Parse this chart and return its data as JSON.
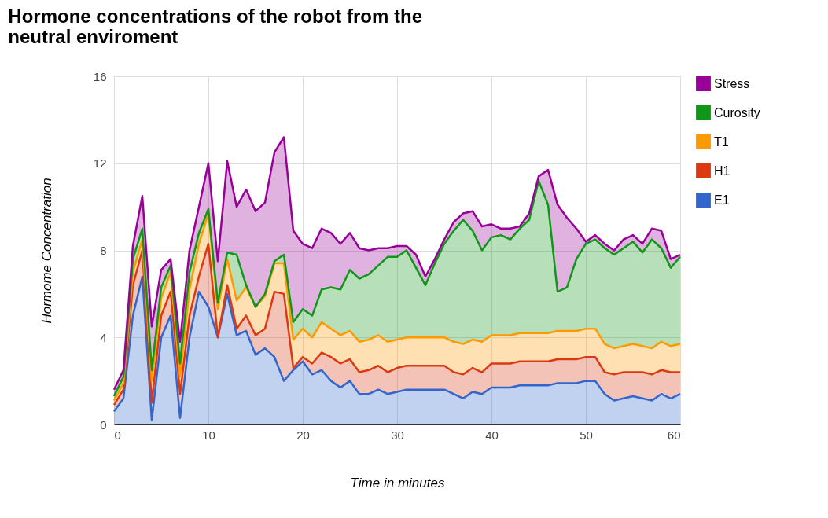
{
  "chart_data": {
    "type": "area",
    "stacked": true,
    "title": [
      "Hormone concentrations of the robot from the",
      "neutral enviroment"
    ],
    "xlabel": "Time in minutes",
    "ylabel": "Hormome Concentration",
    "x": [
      0,
      1,
      2,
      3,
      4,
      5,
      6,
      7,
      8,
      9,
      10,
      11,
      12,
      13,
      14,
      15,
      16,
      17,
      18,
      19,
      20,
      21,
      22,
      23,
      24,
      25,
      26,
      27,
      28,
      29,
      30,
      31,
      32,
      33,
      34,
      35,
      36,
      37,
      38,
      39,
      40,
      41,
      42,
      43,
      44,
      45,
      46,
      47,
      48,
      49,
      50,
      51,
      52,
      53,
      54,
      55,
      56,
      57,
      58,
      59,
      60
    ],
    "xlim": [
      0,
      60
    ],
    "xticks": [
      0,
      10,
      20,
      30,
      40,
      50,
      60
    ],
    "ylim": [
      0,
      16
    ],
    "yticks": [
      0,
      4,
      8,
      12,
      16
    ],
    "grid": true,
    "legend": "right",
    "series": [
      {
        "name": "E1",
        "color": "#3366cc",
        "values": [
          0.6,
          1.2,
          5.0,
          6.8,
          0.2,
          4.0,
          5.0,
          0.3,
          4.0,
          6.1,
          5.4,
          4.0,
          6.0,
          4.1,
          4.3,
          3.2,
          3.5,
          3.1,
          2.0,
          2.5,
          2.9,
          2.3,
          2.5,
          2.0,
          1.7,
          2.0,
          1.4,
          1.4,
          1.6,
          1.4,
          1.5,
          1.6,
          1.6,
          1.6,
          1.6,
          1.6,
          1.4,
          1.2,
          1.5,
          1.4,
          1.7,
          1.7,
          1.7,
          1.8,
          1.8,
          1.8,
          1.8,
          1.9,
          1.9,
          1.9,
          2.0,
          2.0,
          1.4,
          1.1,
          1.2,
          1.3,
          1.2,
          1.1,
          1.4,
          1.2,
          1.4
        ]
      },
      {
        "name": "H1",
        "color": "#dc3912",
        "values": [
          0.3,
          0.4,
          1.4,
          1.2,
          0.8,
          1.0,
          1.1,
          1.1,
          1.0,
          0.7,
          2.9,
          0,
          0.4,
          0.3,
          0.7,
          0.9,
          0.9,
          3.0,
          4.0,
          0.1,
          0.2,
          0.5,
          0.8,
          1.1,
          1.1,
          1.0,
          1.0,
          1.1,
          1.1,
          1.0,
          1.1,
          1.1,
          1.1,
          1.1,
          1.1,
          1.1,
          1.0,
          1.1,
          1.1,
          1.0,
          1.1,
          1.1,
          1.1,
          1.1,
          1.1,
          1.1,
          1.1,
          1.1,
          1.1,
          1.1,
          1.1,
          1.1,
          1.0,
          1.2,
          1.2,
          1.1,
          1.2,
          1.2,
          1.1,
          1.2,
          1.0
        ]
      },
      {
        "name": "T1",
        "color": "#ff9900",
        "values": [
          0.2,
          0.3,
          0.6,
          0.5,
          1.0,
          0.8,
          0.9,
          0.8,
          1.2,
          1.5,
          1.4,
          1.3,
          1.2,
          1.3,
          1.3,
          1.3,
          1.5,
          1.3,
          1.4,
          1.3,
          1.3,
          1.2,
          1.4,
          1.3,
          1.3,
          1.3,
          1.4,
          1.4,
          1.4,
          1.4,
          1.3,
          1.3,
          1.3,
          1.3,
          1.3,
          1.3,
          1.4,
          1.4,
          1.3,
          1.4,
          1.3,
          1.3,
          1.3,
          1.3,
          1.3,
          1.3,
          1.3,
          1.3,
          1.3,
          1.3,
          1.3,
          1.3,
          1.3,
          1.2,
          1.2,
          1.3,
          1.2,
          1.2,
          1.3,
          1.2,
          1.3
        ]
      },
      {
        "name": "Curosity",
        "color": "#109618",
        "values": [
          0.2,
          0.3,
          0.6,
          0.5,
          0.5,
          0.5,
          0.3,
          0.6,
          0.8,
          0.5,
          0.2,
          0.3,
          0.3,
          2.1,
          0.1,
          0,
          0.1,
          0.1,
          0.4,
          0.8,
          0.9,
          1.0,
          1.5,
          1.9,
          2.1,
          2.8,
          2.9,
          3.0,
          3.2,
          3.9,
          3.8,
          4.0,
          3.2,
          2.4,
          3.4,
          4.3,
          5.1,
          5.7,
          5.0,
          4.2,
          4.5,
          4.6,
          4.4,
          4.8,
          5.2,
          7.0,
          5.9,
          1.8,
          2.0,
          3.3,
          3.9,
          4.1,
          4.4,
          4.3,
          4.5,
          4.7,
          4.3,
          5.0,
          4.3,
          3.6,
          4.0
        ]
      },
      {
        "name": "Stress",
        "color": "#990099",
        "values": [
          0.3,
          0.3,
          0.6,
          1.5,
          2.0,
          0.8,
          0.3,
          1.0,
          1.0,
          1.2,
          2.1,
          1.9,
          4.2,
          2.2,
          4.4,
          4.4,
          4.2,
          5.0,
          5.4,
          4.2,
          3.0,
          3.1,
          2.8,
          2.5,
          2.1,
          1.7,
          1.4,
          1.1,
          0.8,
          0.4,
          0.5,
          0.2,
          0.6,
          0.4,
          0.2,
          0.2,
          0.4,
          0.3,
          0.9,
          1.1,
          0.6,
          0.3,
          0.5,
          0.1,
          0.3,
          0.2,
          1.6,
          4.0,
          3.2,
          1.4,
          0.1,
          0.2,
          0.2,
          0.2,
          0.4,
          0.3,
          0.4,
          0.5,
          0.8,
          0.4,
          0.1
        ]
      }
    ]
  }
}
